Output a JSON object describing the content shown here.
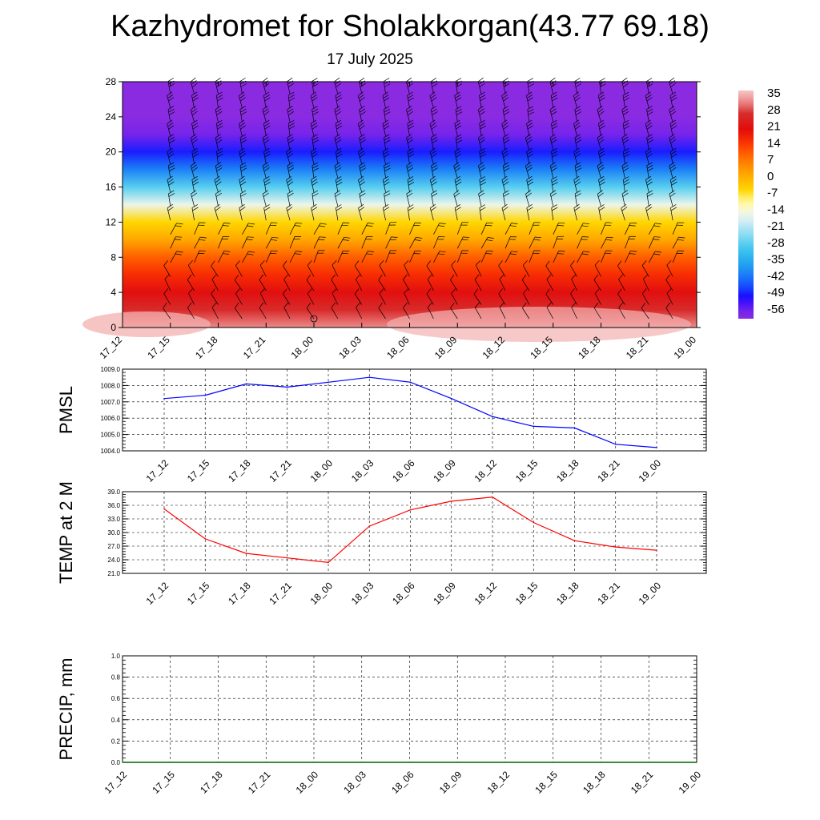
{
  "title": "Kazhydromet for Sholakkorgan(43.77 69.18)",
  "subtitle": "17 July 2025",
  "chart_data": [
    {
      "type": "heatmap",
      "name": "cross-section",
      "x": [
        "17_12",
        "17_15",
        "17_18",
        "17_21",
        "18_00",
        "18_03",
        "18_06",
        "18_09",
        "18_12",
        "18_15",
        "18_18",
        "18_21",
        "19_00"
      ],
      "yticks": [
        0,
        4,
        8,
        12,
        16,
        20,
        24,
        28
      ],
      "ylim": [
        0,
        28
      ],
      "colorbar_labels": [
        "35",
        "28",
        "21",
        "14",
        "7",
        "0",
        "-7",
        "-14",
        "-21",
        "-28",
        "-35",
        "-42",
        "-49",
        "-56"
      ],
      "colorbar_range": [
        -63,
        38
      ],
      "temperature_profile": [
        {
          "height": 0,
          "value": 33
        },
        {
          "height": 2,
          "value": 27
        },
        {
          "height": 4,
          "value": 22
        },
        {
          "height": 6,
          "value": 16
        },
        {
          "height": 8,
          "value": 10
        },
        {
          "height": 10,
          "value": 1
        },
        {
          "height": 12,
          "value": -6
        },
        {
          "height": 14,
          "value": -17
        },
        {
          "height": 16,
          "value": -30
        },
        {
          "height": 18,
          "value": -43
        },
        {
          "height": 20,
          "value": -52
        },
        {
          "height": 22,
          "value": -60
        },
        {
          "height": 24,
          "value": -63
        },
        {
          "height": 28,
          "value": -63
        }
      ],
      "wind_barbs": true,
      "grid": false
    },
    {
      "type": "line",
      "ylabel": "PMSL",
      "x": [
        "17_12",
        "17_15",
        "17_18",
        "17_21",
        "18_00",
        "18_03",
        "18_06",
        "18_09",
        "18_12",
        "18_15",
        "18_18",
        "18_21",
        "19_00"
      ],
      "ylim": [
        1004.0,
        1009.0
      ],
      "yticks": [
        "1004.0",
        "1005.0",
        "1006.0",
        "1007.0",
        "1008.0",
        "1009.0"
      ],
      "series": [
        {
          "values": [
            1007.2,
            1007.4,
            1008.1,
            1007.9,
            1008.2,
            1008.5,
            1008.2,
            1007.2,
            1006.1,
            1005.5,
            1005.4,
            1004.4,
            1004.2
          ],
          "color": "#0000ff"
        }
      ],
      "grid": true
    },
    {
      "type": "line",
      "ylabel": "TEMP at 2 M",
      "x": [
        "17_12",
        "17_15",
        "17_18",
        "17_21",
        "18_00",
        "18_03",
        "18_06",
        "18_09",
        "18_12",
        "18_15",
        "18_18",
        "18_21",
        "19_00"
      ],
      "ylim": [
        21.0,
        39.0
      ],
      "yticks": [
        "21.0",
        "24.0",
        "27.0",
        "30.0",
        "33.0",
        "36.0",
        "39.0"
      ],
      "series": [
        {
          "values": [
            35.2,
            28.6,
            25.4,
            24.4,
            23.4,
            31.4,
            35.0,
            36.9,
            37.8,
            32.2,
            28.2,
            26.8,
            26.1
          ],
          "color": "#ff0000"
        }
      ],
      "grid": true
    },
    {
      "type": "bar",
      "ylabel": "PRECIP, mm",
      "x": [
        "17_12",
        "17_15",
        "17_18",
        "17_21",
        "18_00",
        "18_03",
        "18_06",
        "18_09",
        "18_12",
        "18_15",
        "18_18",
        "18_21",
        "19_00"
      ],
      "ylim": [
        0.0,
        1.0
      ],
      "yticks": [
        "0.0",
        "0.2",
        "0.4",
        "0.6",
        "0.8",
        "1.0"
      ],
      "series": [
        {
          "values": [
            0,
            0,
            0,
            0,
            0,
            0,
            0,
            0,
            0,
            0,
            0,
            0,
            0
          ],
          "color": "#006400"
        }
      ],
      "grid": true
    }
  ]
}
